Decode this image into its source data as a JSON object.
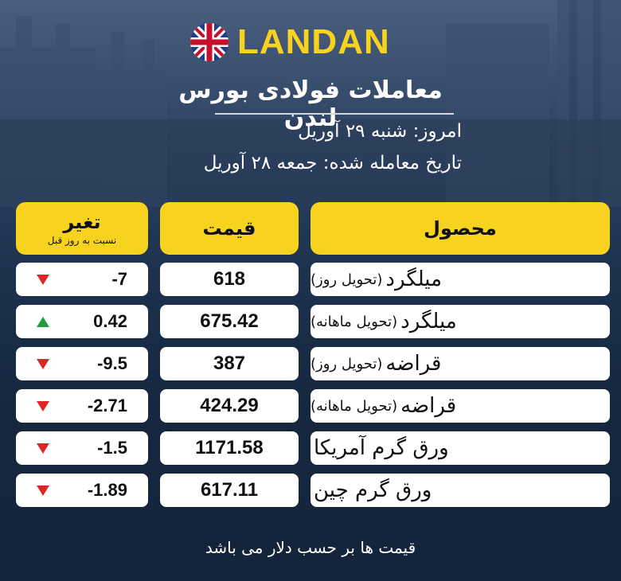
{
  "brand": {
    "name": "LANDAN"
  },
  "header": {
    "title": "معاملات فولادی بورس لندن",
    "today": "امروز: شنبه ۲۹ آوریل",
    "trade_date": "تاریخ معامله شده: جمعه ۲۸ آوریل"
  },
  "table": {
    "headers": {
      "product": "محصول",
      "price": "قیمت",
      "change": "تغیر",
      "change_sub": "نسبت به روز قبل"
    },
    "rows": [
      {
        "product": "میلگرد",
        "detail": "(تحویل روز)",
        "price": "618",
        "change": "-7",
        "direction": "down"
      },
      {
        "product": "میلگرد",
        "detail": "(تحویل ماهانه)",
        "price": "675.42",
        "change": "0.42",
        "direction": "up"
      },
      {
        "product": "قراضه",
        "detail": "(تحویل روز)",
        "price": "387",
        "change": "-9.5",
        "direction": "down"
      },
      {
        "product": "قراضه",
        "detail": "(تحویل ماهانه)",
        "price": "424.29",
        "change": "-2.71",
        "direction": "down"
      },
      {
        "product": "ورق گرم آمریکا",
        "detail": "",
        "price": "1171.58",
        "change": "-1.5",
        "direction": "down"
      },
      {
        "product": "ورق گرم چین",
        "detail": "",
        "price": "617.11",
        "change": "-1.89",
        "direction": "down"
      }
    ]
  },
  "footer": {
    "note": "قیمت ها بر حسب دلار می باشد"
  },
  "colors": {
    "accent": "#f7d21e",
    "up": "#1f9d3a",
    "down": "#e02424",
    "background": "#16273f"
  }
}
